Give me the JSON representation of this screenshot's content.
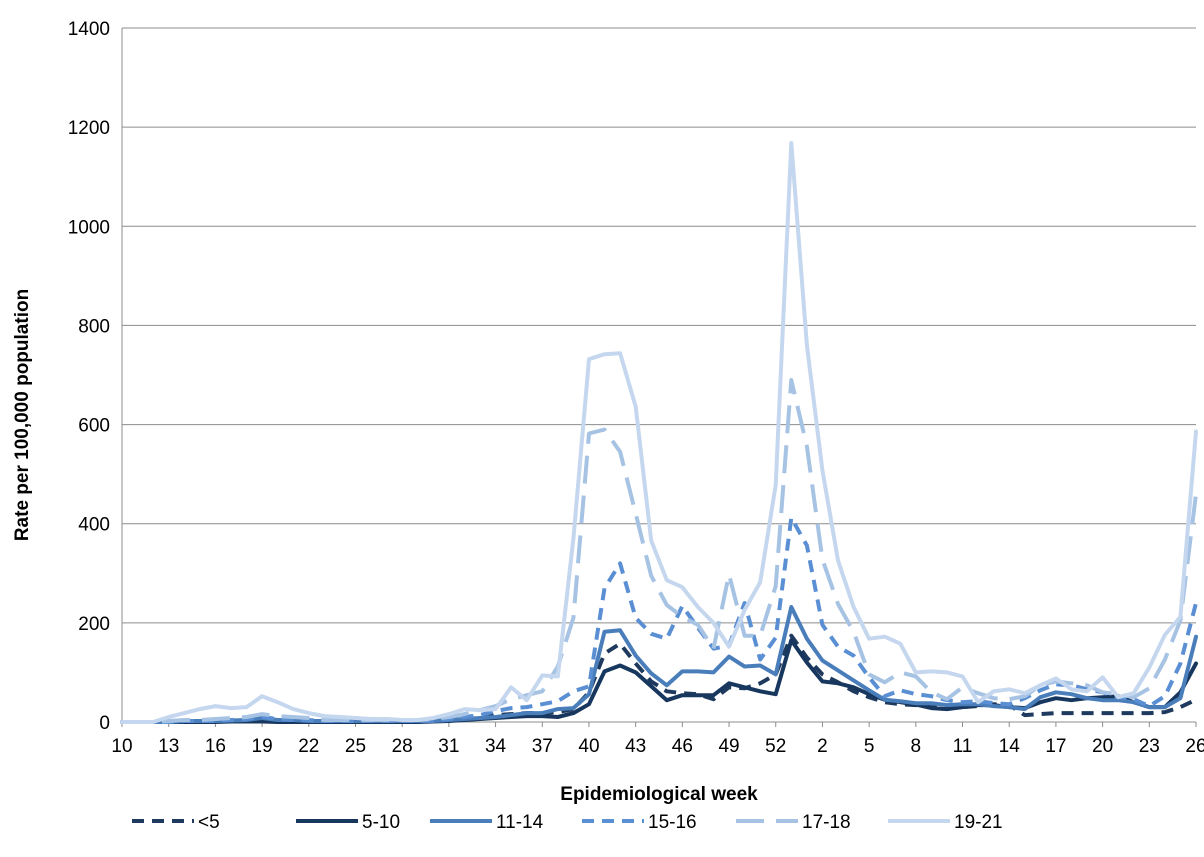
{
  "chart_data": {
    "type": "line",
    "title": "",
    "xlabel": "Epidemiological week",
    "ylabel": "Rate per 100,000 population",
    "ylim": [
      0,
      1400
    ],
    "yticks": [
      0,
      200,
      400,
      600,
      800,
      1000,
      1200,
      1400
    ],
    "grid": "horizontal",
    "legend_position": "bottom",
    "weeks": [
      "10",
      "11",
      "12",
      "13",
      "14",
      "15",
      "16",
      "17",
      "18",
      "19",
      "20",
      "21",
      "22",
      "23",
      "24",
      "25",
      "26",
      "27",
      "28",
      "29",
      "30",
      "31",
      "32",
      "33",
      "34",
      "35",
      "36",
      "37",
      "38",
      "39",
      "40",
      "41",
      "42",
      "43",
      "44",
      "45",
      "46",
      "47",
      "48",
      "49",
      "50",
      "51",
      "52",
      "53",
      "1",
      "2",
      "3",
      "4",
      "5",
      "6",
      "7",
      "8",
      "9",
      "10",
      "11",
      "12",
      "13",
      "14",
      "15",
      "16",
      "17",
      "18",
      "19",
      "20",
      "21",
      "22",
      "23",
      "24",
      "25",
      "26"
    ],
    "x_tick_labels": [
      "10",
      "13",
      "16",
      "19",
      "22",
      "25",
      "28",
      "31",
      "34",
      "37",
      "40",
      "43",
      "46",
      "49",
      "52",
      "2",
      "5",
      "8",
      "11",
      "14",
      "17",
      "20",
      "23",
      "26"
    ],
    "series": [
      {
        "name": "<5",
        "color": "#1f3a5f",
        "dash": "dashed",
        "values": [
          0,
          0,
          0,
          2,
          2,
          2,
          2,
          3,
          4,
          5,
          4,
          4,
          3,
          2,
          2,
          2,
          2,
          2,
          2,
          2,
          3,
          4,
          6,
          10,
          14,
          16,
          18,
          18,
          20,
          26,
          60,
          138,
          158,
          118,
          82,
          62,
          58,
          56,
          46,
          70,
          68,
          78,
          96,
          174,
          130,
          96,
          80,
          62,
          50,
          40,
          36,
          34,
          30,
          28,
          30,
          32,
          36,
          34,
          14,
          16,
          18,
          18,
          18,
          18,
          18,
          18,
          18,
          20,
          30,
          45
        ]
      },
      {
        "name": "5-10",
        "color": "#17375e",
        "dash": "solid",
        "values": [
          0,
          0,
          0,
          0,
          0,
          0,
          0,
          1,
          1,
          1,
          0,
          0,
          0,
          0,
          0,
          0,
          0,
          0,
          0,
          0,
          1,
          2,
          4,
          6,
          8,
          10,
          12,
          12,
          10,
          18,
          36,
          102,
          114,
          100,
          72,
          44,
          54,
          54,
          54,
          78,
          70,
          62,
          56,
          165,
          120,
          82,
          78,
          70,
          56,
          45,
          40,
          35,
          28,
          26,
          30,
          34,
          34,
          30,
          28,
          40,
          48,
          44,
          48,
          50,
          52,
          40,
          30,
          30,
          60,
          118
        ]
      },
      {
        "name": "11-14",
        "color": "#4a7ebb",
        "dash": "solid",
        "values": [
          0,
          0,
          0,
          0,
          2,
          2,
          2,
          3,
          4,
          8,
          4,
          4,
          2,
          2,
          2,
          2,
          2,
          2,
          2,
          2,
          2,
          4,
          6,
          8,
          10,
          14,
          18,
          18,
          26,
          28,
          56,
          182,
          185,
          134,
          98,
          74,
          102,
          102,
          100,
          132,
          112,
          114,
          96,
          232,
          168,
          124,
          104,
          84,
          64,
          45,
          42,
          38,
          38,
          34,
          36,
          36,
          32,
          30,
          26,
          50,
          60,
          56,
          48,
          44,
          44,
          40,
          30,
          30,
          48,
          172
        ]
      },
      {
        "name": "15-16",
        "color": "#5b8fd4",
        "dash": "dashed",
        "values": [
          0,
          0,
          0,
          0,
          2,
          2,
          2,
          4,
          6,
          10,
          6,
          4,
          4,
          2,
          2,
          2,
          2,
          2,
          2,
          2,
          3,
          6,
          10,
          14,
          22,
          28,
          30,
          36,
          42,
          62,
          72,
          270,
          320,
          210,
          178,
          168,
          234,
          190,
          148,
          154,
          240,
          126,
          170,
          412,
          356,
          196,
          152,
          134,
          90,
          52,
          64,
          56,
          52,
          44,
          40,
          42,
          38,
          36,
          48,
          64,
          76,
          74,
          66,
          60,
          50,
          46,
          32,
          52,
          118,
          240
        ]
      },
      {
        "name": "17-18",
        "color": "#a7c3e4",
        "dash": "longdash",
        "values": [
          0,
          0,
          0,
          2,
          4,
          4,
          6,
          8,
          10,
          16,
          12,
          10,
          8,
          4,
          4,
          4,
          4,
          4,
          4,
          4,
          6,
          10,
          16,
          24,
          32,
          46,
          54,
          62,
          112,
          210,
          582,
          590,
          545,
          420,
          295,
          236,
          212,
          196,
          148,
          298,
          174,
          174,
          274,
          690,
          556,
          328,
          238,
          182,
          96,
          80,
          100,
          92,
          60,
          46,
          70,
          58,
          48,
          46,
          52,
          74,
          82,
          78,
          74,
          60,
          56,
          50,
          68,
          126,
          205,
          460
        ]
      },
      {
        "name": "19-21",
        "color": "#c5d7ee",
        "dash": "solid",
        "values": [
          0,
          0,
          0,
          10,
          18,
          26,
          32,
          28,
          30,
          52,
          40,
          26,
          18,
          12,
          10,
          8,
          6,
          6,
          4,
          4,
          8,
          16,
          26,
          24,
          26,
          70,
          44,
          94,
          92,
          370,
          732,
          742,
          744,
          636,
          366,
          286,
          272,
          232,
          200,
          152,
          226,
          282,
          478,
          1168,
          760,
          508,
          326,
          232,
          168,
          172,
          158,
          100,
          102,
          100,
          92,
          40,
          62,
          66,
          58,
          74,
          88,
          66,
          62,
          90,
          50,
          58,
          110,
          176,
          212,
          586
        ]
      }
    ]
  }
}
